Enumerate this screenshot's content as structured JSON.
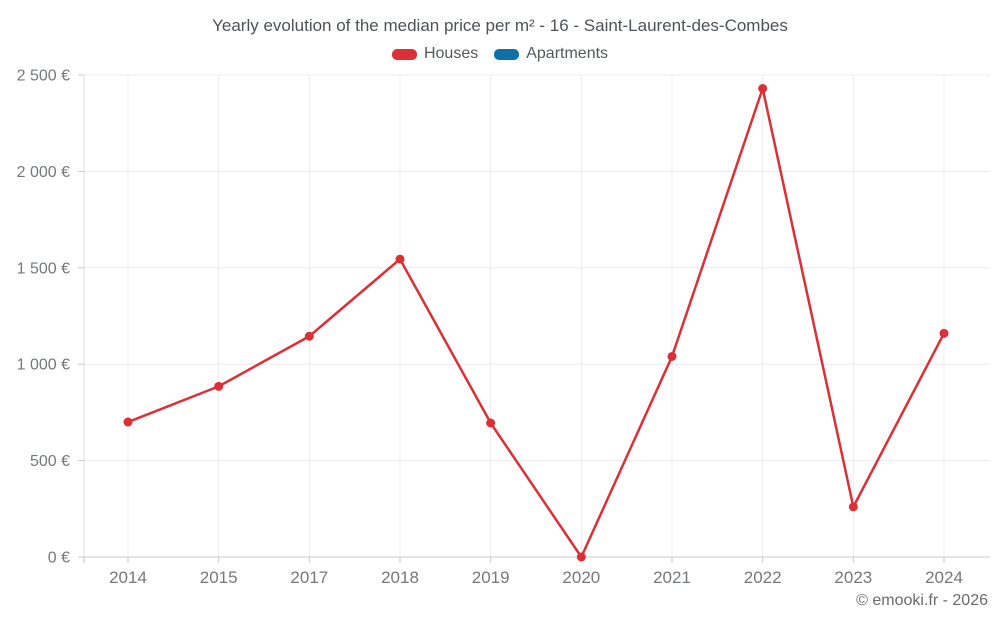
{
  "chart_data": {
    "type": "line",
    "title": "Yearly evolution of the median price per m² - 16 - Saint-Laurent-des-Combes",
    "x": [
      "2014",
      "2015",
      "2017",
      "2018",
      "2019",
      "2020",
      "2021",
      "2022",
      "2023",
      "2024"
    ],
    "series": [
      {
        "name": "Houses",
        "color": "#da3036",
        "values": [
          700,
          885,
          1145,
          1545,
          695,
          0,
          1040,
          2430,
          260,
          1160
        ]
      },
      {
        "name": "Apartments",
        "color": "#0e71a5",
        "values": []
      }
    ],
    "y_ticks": {
      "values": [
        0,
        500,
        1000,
        1500,
        2000,
        2500
      ],
      "labels": [
        "0 €",
        "500 €",
        "1 000 €",
        "1 500 €",
        "2 000 €",
        "2 500 €"
      ]
    },
    "ylim": [
      0,
      2500
    ],
    "xlabel": "",
    "ylabel": "",
    "grid": true,
    "legend_position": "top",
    "colors": {
      "grid": "#ececec",
      "axis_left": "#dedede",
      "axis_bottom": "#c9c9c9",
      "tick": "#c9c9c9",
      "tick_text": "#75787b"
    }
  },
  "footer": {
    "copyright": "© emooki.fr - 2026"
  }
}
